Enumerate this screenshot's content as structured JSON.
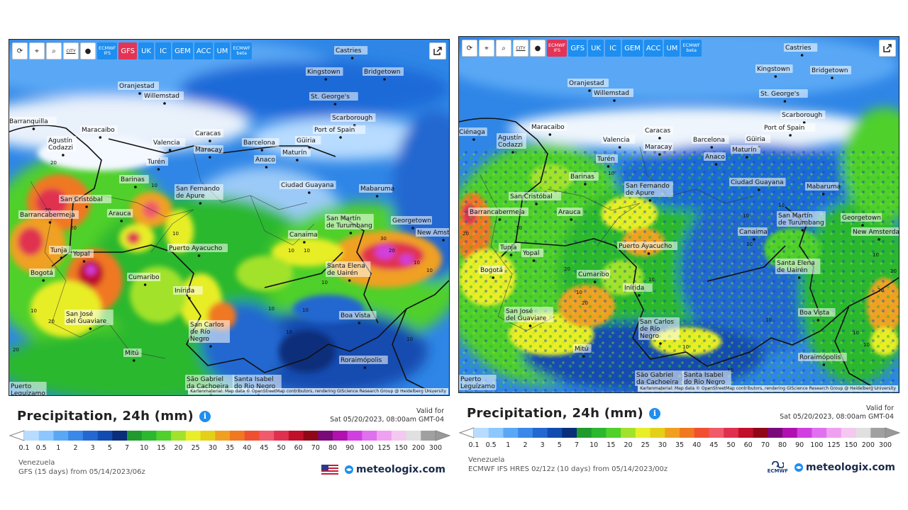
{
  "toolbar": {
    "tools": [
      {
        "name": "refresh-icon",
        "glyph": "⟳"
      },
      {
        "name": "location-pin-icon",
        "glyph": "⌖"
      },
      {
        "name": "zoom-icon",
        "glyph": "⌕"
      },
      {
        "name": "city-toggle",
        "glyph": "CITY"
      },
      {
        "name": "dot-icon",
        "glyph": "●"
      }
    ],
    "models_a": [
      "ECMWF\nIFS",
      "GFS",
      "UK",
      "IC",
      "GEM",
      "ACC",
      "UM",
      "ECMWF\nbeta"
    ],
    "models_b": [
      "ECMWF\nIFS",
      "GFS",
      "UK",
      "IC",
      "GEM",
      "ACC",
      "UM",
      "ECMWF\nbeta"
    ]
  },
  "cities": [
    {
      "name": "Castries"
    },
    {
      "name": "Kingstown"
    },
    {
      "name": "Bridgetown"
    },
    {
      "name": "Oranjestad"
    },
    {
      "name": "Willemstad"
    },
    {
      "name": "St. George's"
    },
    {
      "name": "Scarborough"
    },
    {
      "name": "Port of Spain"
    },
    {
      "name": "Barranquilla"
    },
    {
      "name": "Maracaibo"
    },
    {
      "name": "Caracas"
    },
    {
      "name": "Valencia"
    },
    {
      "name": "Maracay"
    },
    {
      "name": "Barcelona"
    },
    {
      "name": "Güiria"
    },
    {
      "name": "Maturín"
    },
    {
      "name": "Agustín Codazzi"
    },
    {
      "name": "Turén"
    },
    {
      "name": "Anaco"
    },
    {
      "name": "Barinas"
    },
    {
      "name": "Ciudad Guayana"
    },
    {
      "name": "Mabaruma"
    },
    {
      "name": "San Fernando de Apure"
    },
    {
      "name": "San Cristóbal"
    },
    {
      "name": "Barrancabermeja"
    },
    {
      "name": "Arauca"
    },
    {
      "name": "San Martín de Turumbang"
    },
    {
      "name": "Georgetown"
    },
    {
      "name": "Canaima"
    },
    {
      "name": "New Amsterdam"
    },
    {
      "name": "Puerto Ayacucho"
    },
    {
      "name": "Tunja"
    },
    {
      "name": "Yopal"
    },
    {
      "name": "Bogotá"
    },
    {
      "name": "Cumaribo"
    },
    {
      "name": "Santa Elena de Uairén"
    },
    {
      "name": "Inírida"
    },
    {
      "name": "San José del Guaviare"
    },
    {
      "name": "San Carlos de Río Negro"
    },
    {
      "name": "Boa Vista"
    },
    {
      "name": "Mitú"
    },
    {
      "name": "Roraimópolis"
    },
    {
      "name": "São Gabriel da Cachoeira"
    },
    {
      "name": "Santa Isabel do Rio Negro"
    },
    {
      "name": "Puerto Leguízamo"
    },
    {
      "name": "Ciénaga"
    }
  ],
  "scale": {
    "colors": [
      "#b8dcff",
      "#8cc8ff",
      "#5aa8f5",
      "#3a88e8",
      "#2368d0",
      "#124cb0",
      "#0a2e7a",
      "#1e9a2e",
      "#2cb82e",
      "#50d02a",
      "#a2e22c",
      "#e8ee28",
      "#e4d018",
      "#f0a020",
      "#f07820",
      "#f05030",
      "#f05a6a",
      "#e03050",
      "#c0102a",
      "#900818",
      "#7a0a7a",
      "#b010b0",
      "#d040e0",
      "#e070f0",
      "#f0a0f0",
      "#f4c8f0",
      "#e0e0e0",
      "#a0a0a0"
    ],
    "labels": [
      "0.1",
      "0.5",
      "1",
      "2",
      "3",
      "5",
      "7",
      "10",
      "15",
      "20",
      "25",
      "30",
      "35",
      "40",
      "45",
      "50",
      "60",
      "70",
      "80",
      "90",
      "100",
      "125",
      "150",
      "200",
      "300"
    ]
  },
  "panels": [
    {
      "legend_title": "Precipitation, 24h (mm)",
      "valid_label": "Valid for",
      "valid_time": "Sat 05/20/2023, 08:00am GMT-04",
      "region": "Venezuela",
      "model_run": "GFS (15 days) from 05/14/2023/06z",
      "brand": "meteologix.com",
      "attribution": "Kartenmaterial: Map data © OpenStreetMap contributors, rendering GIScience Research Group @ Heidelberg University",
      "active_model": "GFS",
      "contours": [
        "20",
        "20",
        "10",
        "10",
        "20",
        "10",
        "30",
        "10",
        "20",
        "10",
        "10",
        "10",
        "20",
        "20",
        "10",
        "10",
        "20",
        "10",
        "10",
        "10",
        "10",
        "10",
        "10"
      ]
    },
    {
      "legend_title": "Precipitation, 24h (mm)",
      "valid_label": "Valid for",
      "valid_time": "Sat 05/20/2023, 08:00am GMT-04",
      "region": "Venezuela",
      "model_run": "ECMWF IFS HRES 0z/12z (10 days) from 05/14/2023/00z",
      "brand": "meteologix.com",
      "ecmwf_logo_text": "ECMWF",
      "attribution": "Kartenmaterial: Map data © OpenStreetMap contributors, rendering GIScience Research Group @ Heidelberg University",
      "active_model": "ECMWF IFS",
      "contours": [
        "20",
        "10",
        "10",
        "10",
        "10",
        "10",
        "10",
        "20",
        "10",
        "10",
        "10",
        "20",
        "10",
        "10",
        "10",
        "10",
        "20",
        "10",
        "20"
      ]
    }
  ]
}
